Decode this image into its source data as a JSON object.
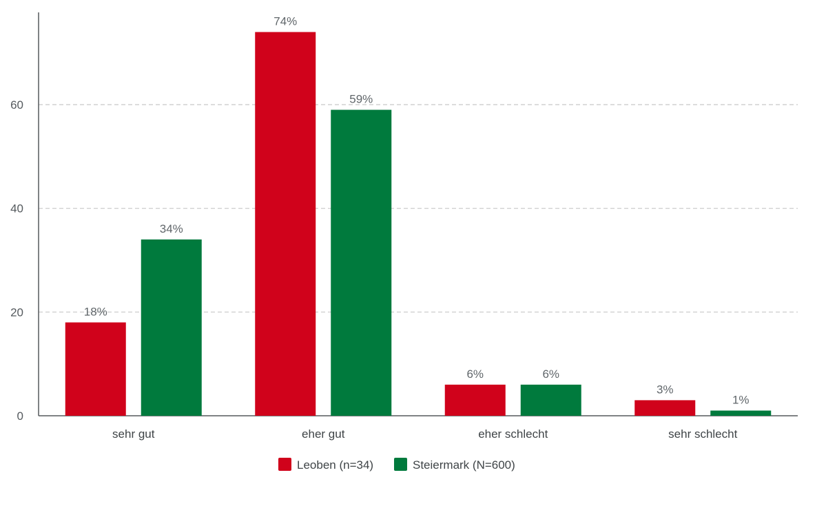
{
  "chart_data": {
    "type": "bar",
    "categories": [
      "sehr gut",
      "eher gut",
      "eher schlecht",
      "sehr schlecht"
    ],
    "series": [
      {
        "name": "Leoben (n=34)",
        "color": "#d0021b",
        "values": [
          18,
          74,
          6,
          3
        ],
        "labels": [
          "18%",
          "74%",
          "6%",
          "3%"
        ]
      },
      {
        "name": "Steiermark (N=600)",
        "color": "#007a3d",
        "values": [
          34,
          59,
          6,
          1
        ],
        "labels": [
          "34%",
          "59%",
          "6%",
          "1%"
        ]
      }
    ],
    "yticks": [
      0,
      20,
      40,
      60
    ],
    "ylim": [
      0,
      80
    ],
    "grid": true,
    "legend_position": "bottom-center"
  }
}
